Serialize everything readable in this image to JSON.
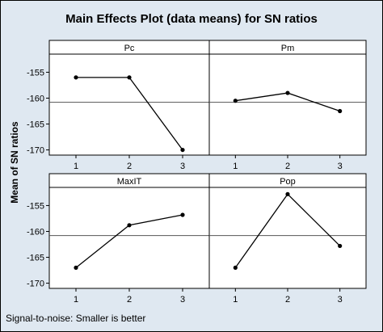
{
  "chart_data": {
    "type": "line",
    "title": "Main Effects Plot (data means) for SN ratios",
    "ylabel": "Mean of SN ratios",
    "footnote": "Signal-to-noise: Smaller is better",
    "ylim": [
      -171,
      -151.5
    ],
    "yticks": [
      -155,
      -160,
      -165,
      -170
    ],
    "xticks": [
      "1",
      "2",
      "3"
    ],
    "reference_line": -160.8,
    "panels": [
      {
        "name": "Pc",
        "x": [
          1,
          2,
          3
        ],
        "values": [
          -156.0,
          -156.0,
          -170.0
        ]
      },
      {
        "name": "Pm",
        "x": [
          1,
          2,
          3
        ],
        "values": [
          -160.5,
          -159.0,
          -162.5
        ]
      },
      {
        "name": "MaxIT",
        "x": [
          1,
          2,
          3
        ],
        "values": [
          -167.0,
          -158.8,
          -156.8
        ]
      },
      {
        "name": "Pop",
        "x": [
          1,
          2,
          3
        ],
        "values": [
          -167.0,
          -152.8,
          -162.8
        ]
      }
    ]
  },
  "colors": {
    "background": "#dfe8f1",
    "panel": "#ffffff",
    "strip": "#ffffff",
    "line": "#000000"
  }
}
